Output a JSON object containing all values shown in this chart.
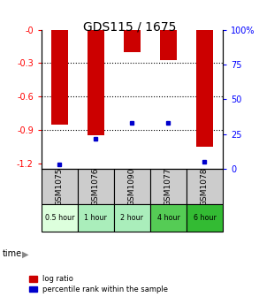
{
  "title": "GDS115 / 1675",
  "samples": [
    "GSM1075",
    "GSM1076",
    "GSM1090",
    "GSM1077",
    "GSM1078"
  ],
  "time_labels": [
    "0.5 hour",
    "1 hour",
    "2 hour",
    "4 hour",
    "6 hour"
  ],
  "time_colors": [
    "#ddffdd",
    "#aaeebb",
    "#aaeebb",
    "#55cc55",
    "#33bb33"
  ],
  "log_ratios": [
    -0.85,
    -0.95,
    -0.2,
    -0.27,
    -1.05
  ],
  "percentile_ranks": [
    3,
    22,
    33,
    33,
    5
  ],
  "ylim_left": [
    -1.25,
    0.0
  ],
  "ylim_right": [
    0,
    100
  ],
  "yticks_left": [
    -1.2,
    -0.9,
    -0.6,
    -0.3,
    0.0
  ],
  "ytick_labels_left": [
    "-1.2",
    "-0.9",
    "-0.6",
    "-0.3",
    "-0"
  ],
  "yticks_right": [
    0,
    25,
    50,
    75,
    100
  ],
  "ytick_labels_right": [
    "0",
    "25",
    "50",
    "75",
    "100%"
  ],
  "hlines": [
    -0.3,
    -0.6,
    -0.9
  ],
  "bar_color": "#cc0000",
  "pct_color": "#0000cc",
  "bar_width": 0.45,
  "legend_bar_label": "log ratio",
  "legend_pct_label": "percentile rank within the sample",
  "sample_box_color": "#cccccc",
  "title_fontsize": 10,
  "tick_fontsize": 7,
  "label_fontsize": 7
}
